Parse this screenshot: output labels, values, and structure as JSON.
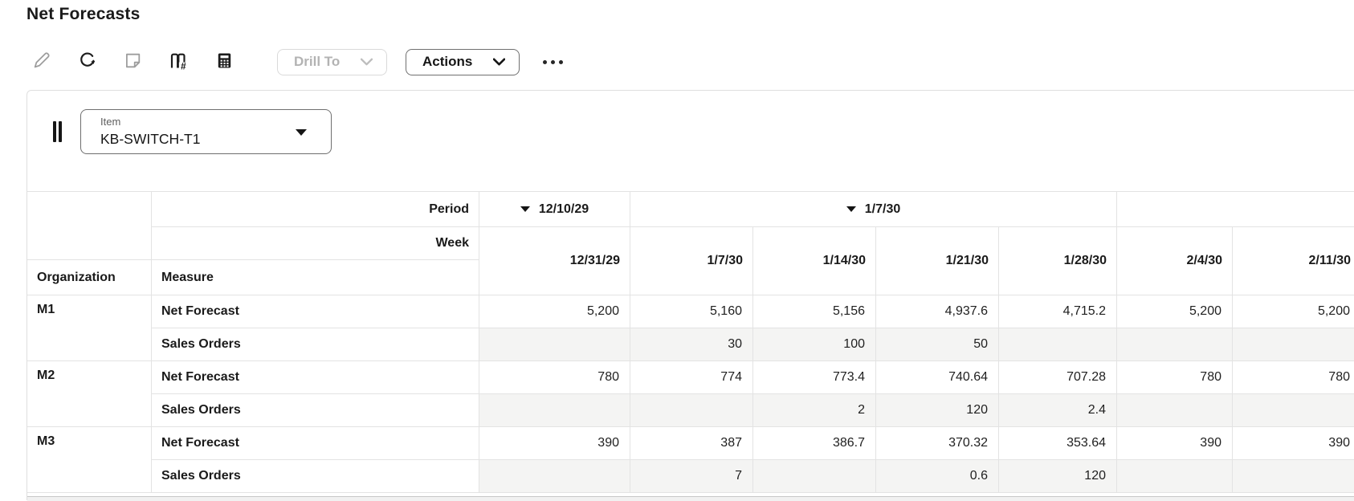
{
  "window": {
    "title": "Net Forecasts"
  },
  "toolbar": {
    "icon_buttons": [
      {
        "icon": "edit-pencil-icon",
        "enabled": false
      },
      {
        "icon": "refresh-icon",
        "enabled": true
      },
      {
        "icon": "sticky-note-icon",
        "enabled": false
      },
      {
        "icon": "page-number-book-icon",
        "enabled": true
      },
      {
        "icon": "calculator-icon",
        "enabled": true
      }
    ],
    "drill_to_label": "Drill To",
    "actions_label": "Actions",
    "more_icon": "ellipsis-icon"
  },
  "filter": {
    "handle_icon": "drag-handle-icon",
    "item_label": "Item",
    "item_value": "KB-SWITCH-T1"
  },
  "table": {
    "corner": {
      "period": "Period",
      "week": "Week",
      "organization": "Organization",
      "measure": "Measure"
    },
    "period_row": [
      {
        "label": "12/10/29",
        "span": 1,
        "arrow": true
      },
      {
        "label": "1/7/30",
        "span": 4,
        "arrow": true
      },
      {
        "label": "",
        "span": 2,
        "arrow": false
      }
    ],
    "weeks": [
      "12/31/29",
      "1/7/30",
      "1/14/30",
      "1/21/30",
      "1/28/30",
      "2/4/30",
      "2/11/30"
    ],
    "groups": [
      {
        "organization": "M1",
        "rows": [
          {
            "measure": "Net Forecast",
            "shaded": false,
            "editable": true,
            "values": [
              "5,200",
              "5,160",
              "5,156",
              "4,937.6",
              "4,715.2",
              "5,200",
              "5,200"
            ]
          },
          {
            "measure": "Sales Orders",
            "shaded": true,
            "editable": false,
            "values": [
              "",
              "30",
              "100",
              "50",
              "",
              "",
              ""
            ]
          }
        ]
      },
      {
        "organization": "M2",
        "rows": [
          {
            "measure": "Net Forecast",
            "shaded": false,
            "editable": true,
            "values": [
              "780",
              "774",
              "773.4",
              "740.64",
              "707.28",
              "780",
              "780"
            ]
          },
          {
            "measure": "Sales Orders",
            "shaded": true,
            "editable": false,
            "values": [
              "",
              "",
              "2",
              "120",
              "2.4",
              "",
              ""
            ]
          }
        ]
      },
      {
        "organization": "M3",
        "rows": [
          {
            "measure": "Net Forecast",
            "shaded": false,
            "editable": true,
            "values": [
              "390",
              "387",
              "386.7",
              "370.32",
              "353.64",
              "390",
              "390"
            ]
          },
          {
            "measure": "Sales Orders",
            "shaded": true,
            "editable": false,
            "values": [
              "",
              "7",
              "",
              "0.6",
              "120",
              "",
              ""
            ]
          }
        ]
      }
    ]
  },
  "colors": {
    "text": "#1a1a1a",
    "disabled_text": "#b3b3b3",
    "grid_border": "#e3e3e3",
    "shaded_row_bg": "#f4f4f3",
    "button_border_dark": "#707070",
    "button_border_light": "#dadada"
  }
}
